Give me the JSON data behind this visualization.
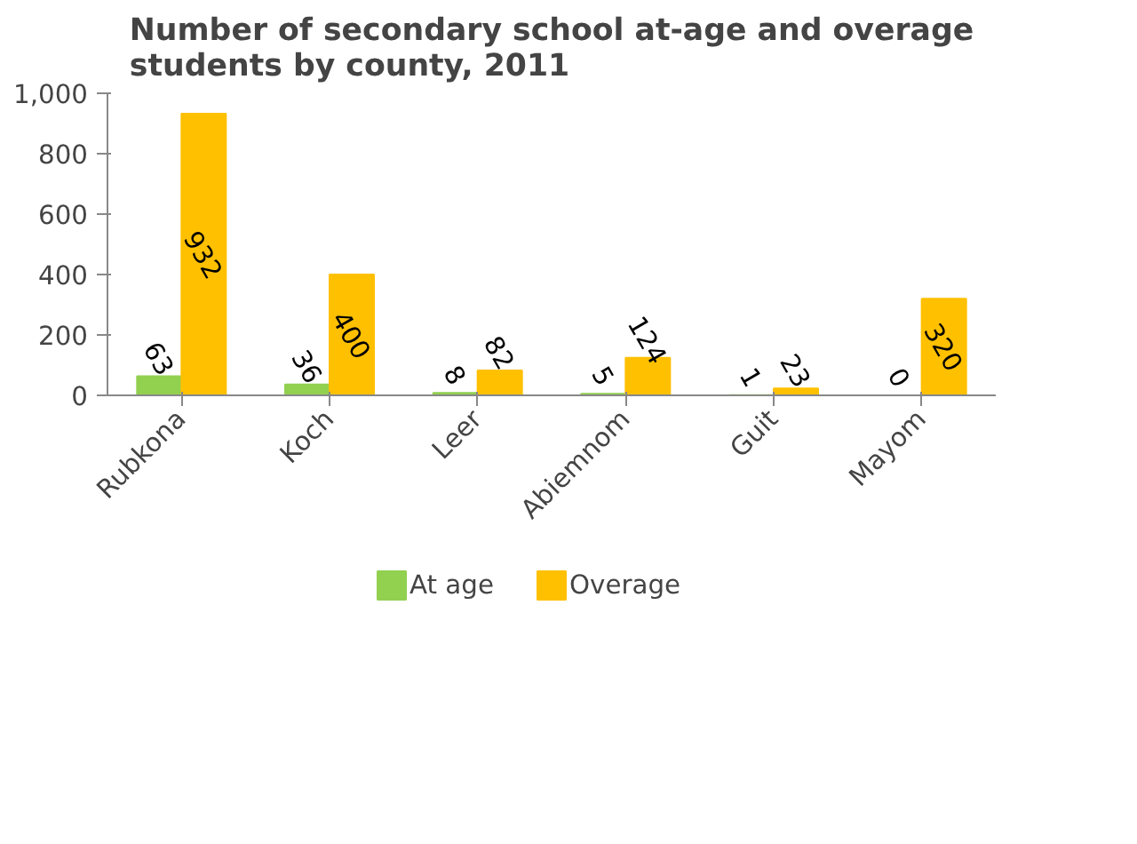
{
  "chart_data": {
    "type": "bar",
    "title": "Number of secondary school at-age and overage students by county, 2011",
    "categories": [
      "Rubkona",
      "Koch",
      "Leer",
      "Abiemnom",
      "Guit",
      "Mayom"
    ],
    "series": [
      {
        "name": "At age",
        "color": "#92d050",
        "values": [
          63,
          36,
          8,
          5,
          1,
          0
        ]
      },
      {
        "name": "Overage",
        "color": "#ffc000",
        "values": [
          932,
          400,
          82,
          124,
          23,
          320
        ]
      }
    ],
    "ylim": [
      0,
      1000
    ],
    "yticks": [
      0,
      200,
      400,
      600,
      800,
      {
        "value": 1000,
        "label": "1,000"
      }
    ],
    "grid": false,
    "legend": "bottom",
    "data_labels": true
  }
}
